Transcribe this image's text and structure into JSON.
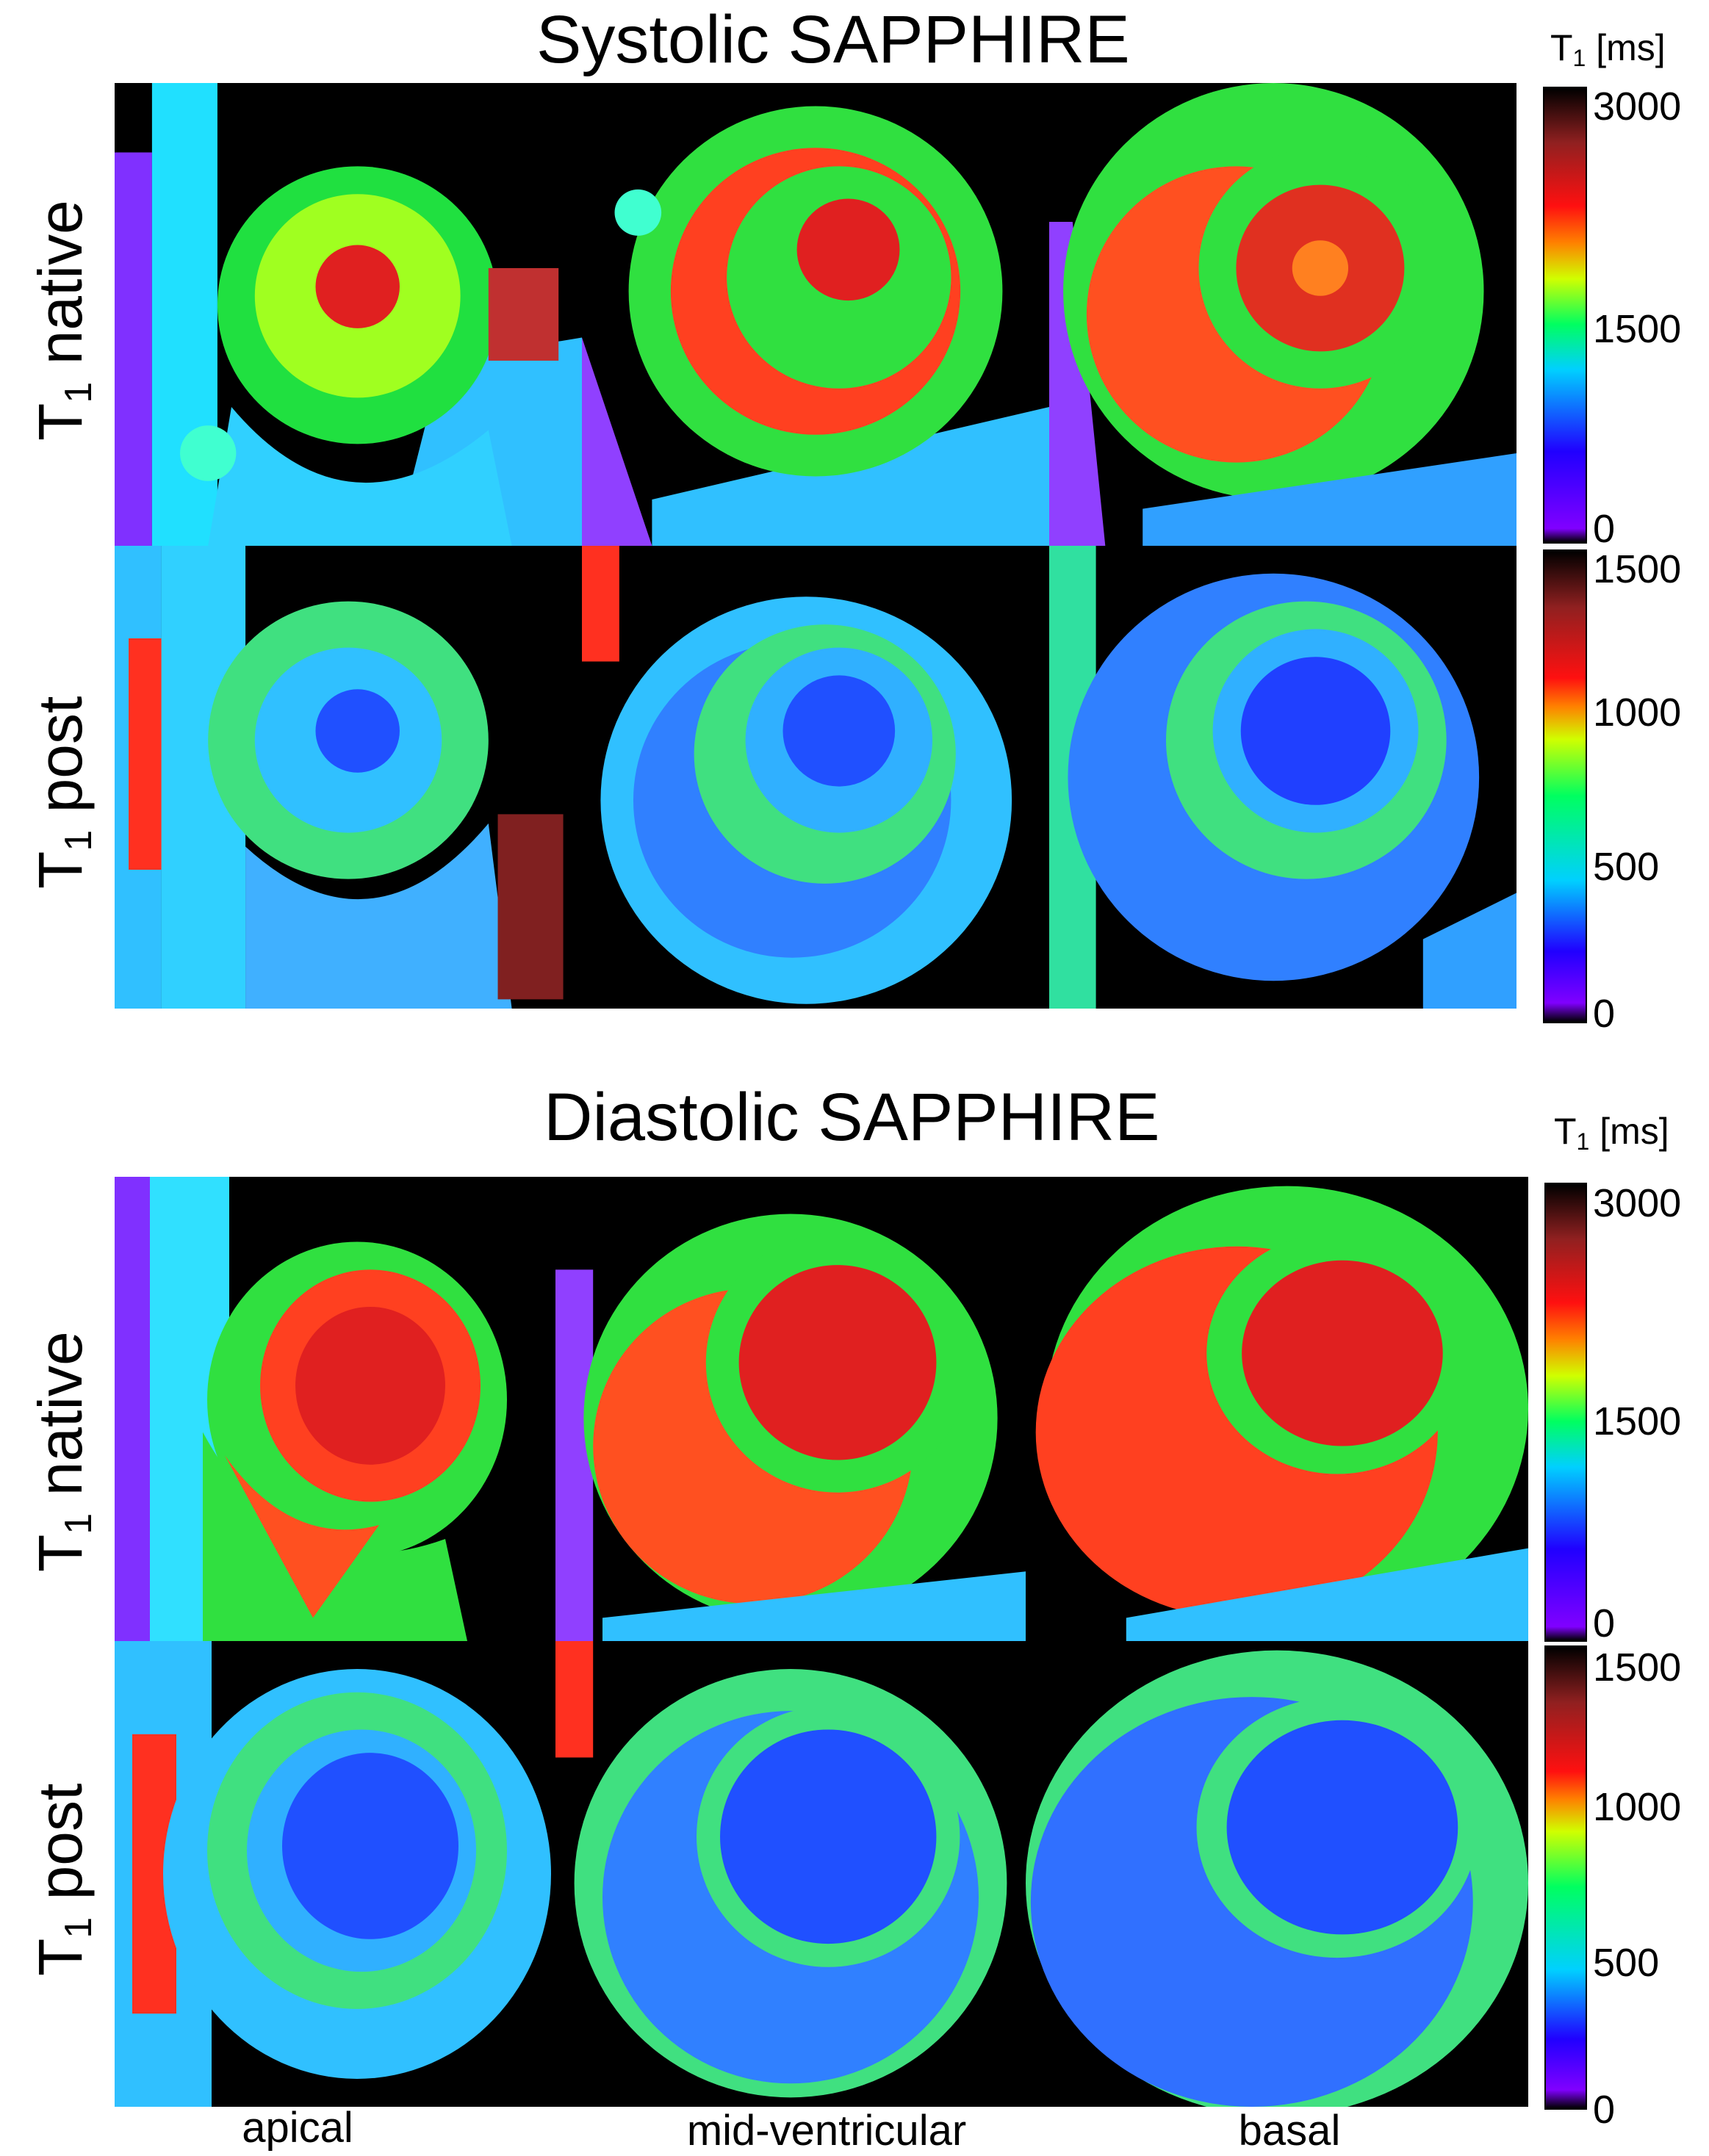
{
  "figure": {
    "sections": [
      {
        "title": "Systolic SAPPHIRE",
        "rows": [
          {
            "label_main": "T",
            "label_sub": "1",
            "label_rest": " native",
            "colorbar": {
              "title_main": "T",
              "title_sub": "1",
              "title_rest": " [ms]",
              "ticks": [
                "3000",
                "1500",
                "0"
              ]
            }
          },
          {
            "label_main": "T",
            "label_sub": "1",
            "label_rest": " post",
            "colorbar": {
              "ticks": [
                "1500",
                "1000",
                "500",
                "0"
              ]
            }
          }
        ]
      },
      {
        "title": "Diastolic SAPPHIRE",
        "rows": [
          {
            "label_main": "T",
            "label_sub": "1",
            "label_rest": " native",
            "colorbar": {
              "title_main": "T",
              "title_sub": "1",
              "title_rest": " [ms]",
              "ticks": [
                "3000",
                "1500",
                "0"
              ]
            }
          },
          {
            "label_main": "T",
            "label_sub": "1",
            "label_rest": " post",
            "colorbar": {
              "ticks": [
                "1500",
                "1000",
                "500",
                "0"
              ]
            }
          }
        ]
      }
    ],
    "columns": [
      "apical",
      "mid-ventricular",
      "basal"
    ]
  }
}
